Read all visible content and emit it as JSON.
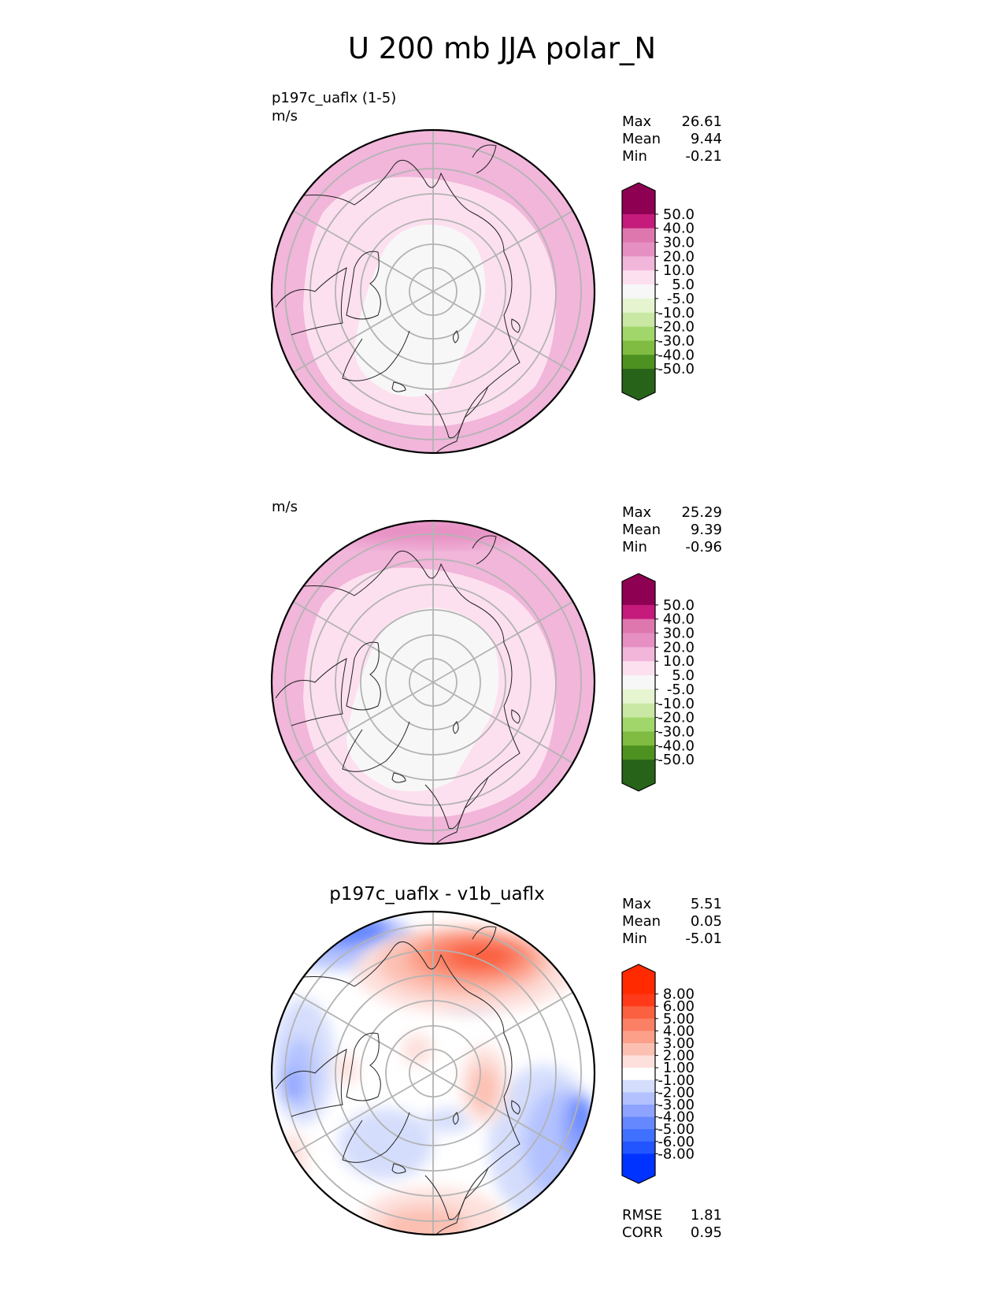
{
  "title": "U 200 mb JJA polar_N",
  "colors": {
    "diverging_pink_green": [
      "#276419",
      "#4d9221",
      "#7fbc41",
      "#a1d76a",
      "#c9e8a4",
      "#e6f5d0",
      "#f7f7f7",
      "#fde0ef",
      "#f1b6da",
      "#e68fc3",
      "#de77ae",
      "#c51b7d",
      "#8e0152"
    ],
    "diverging_blue_red": [
      "#0033ff",
      "#2255ff",
      "#4070ff",
      "#6688ff",
      "#8da3ff",
      "#b3c2ff",
      "#d4ddfc",
      "#ffffff",
      "#fde0dc",
      "#fcc0b2",
      "#fca08a",
      "#fb8065",
      "#fb6040",
      "#ff3a1a",
      "#ff2a00"
    ]
  },
  "panels": {
    "top": {
      "left_label": "p197c_uaflx (1-5)",
      "units": "m/s",
      "max_label": "Max",
      "max_value": "26.61",
      "mean_label": "Mean",
      "mean_value": "9.44",
      "min_label": "Min",
      "min_value": "-0.21"
    },
    "middle": {
      "units": "m/s",
      "max_label": "Max",
      "max_value": "25.29",
      "mean_label": "Mean",
      "mean_value": "9.39",
      "min_label": "Min",
      "min_value": "-0.96"
    },
    "bottom": {
      "title": "p197c_uaflx - v1b_uaflx",
      "max_label": "Max",
      "max_value": "5.51",
      "mean_label": "Mean",
      "mean_value": "0.05",
      "min_label": "Min",
      "min_value": "-5.01",
      "rmse_label": "RMSE",
      "rmse_value": "1.81",
      "corr_label": "CORR",
      "corr_value": "0.95"
    }
  },
  "chart_data": [
    {
      "type": "heatmap",
      "projection": "north polar stereographic",
      "title": "p197c_uaflx (1-5)",
      "units": "m/s",
      "colorbar_levels": [
        "50.0",
        "40.0",
        "30.0",
        "20.0",
        "10.0",
        "5.0",
        "-5.0",
        "-10.0",
        "-20.0",
        "-30.0",
        "-40.0",
        "-50.0"
      ],
      "colorbar_extend": "both",
      "stats": {
        "max": 26.61,
        "mean": 9.44,
        "min": -0.21
      }
    },
    {
      "type": "heatmap",
      "projection": "north polar stereographic",
      "units": "m/s",
      "colorbar_levels": [
        "50.0",
        "40.0",
        "30.0",
        "20.0",
        "10.0",
        "5.0",
        "-5.0",
        "-10.0",
        "-20.0",
        "-30.0",
        "-40.0",
        "-50.0"
      ],
      "colorbar_extend": "both",
      "stats": {
        "max": 25.29,
        "mean": 9.39,
        "min": -0.96
      }
    },
    {
      "type": "heatmap",
      "projection": "north polar stereographic",
      "title": "p197c_uaflx - v1b_uaflx",
      "colorbar_levels": [
        "8.00",
        "6.00",
        "5.00",
        "4.00",
        "3.00",
        "2.00",
        "1.00",
        "-1.00",
        "-2.00",
        "-3.00",
        "-4.00",
        "-5.00",
        "-6.00",
        "-8.00"
      ],
      "colorbar_extend": "both",
      "stats": {
        "max": 5.51,
        "mean": 0.05,
        "min": -5.01,
        "rmse": 1.81,
        "corr": 0.95
      }
    }
  ]
}
